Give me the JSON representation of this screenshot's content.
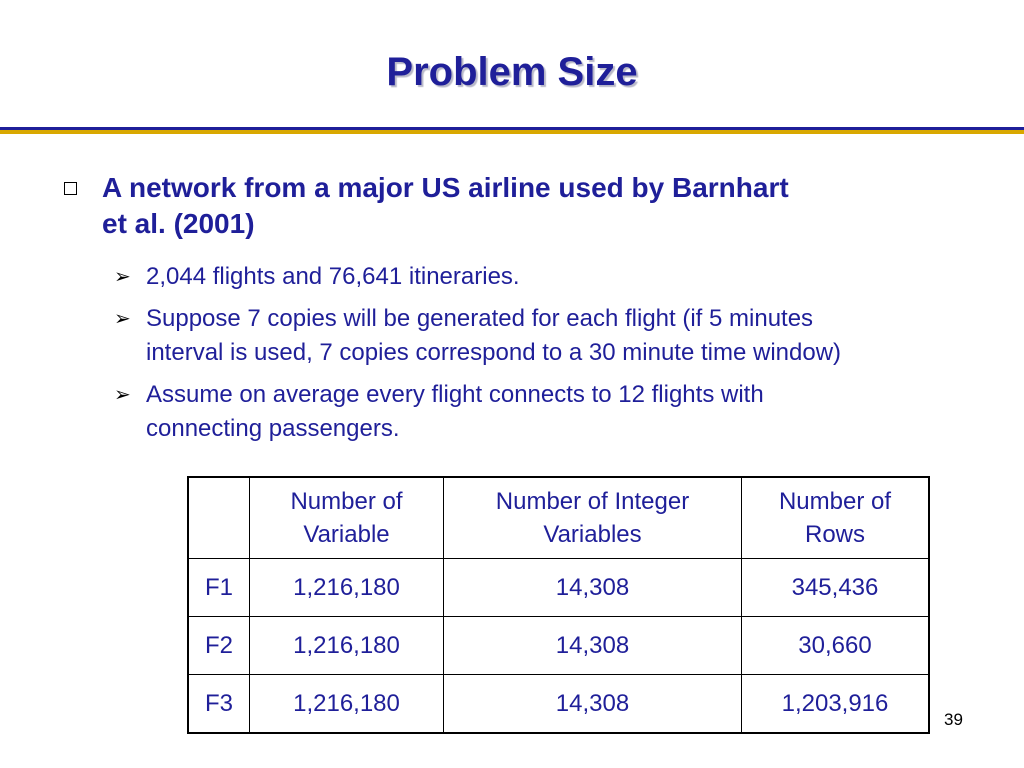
{
  "title": "Problem Size",
  "bullet": {
    "line1": "A network from a major US airline used by Barnhart",
    "line2": "et al. (2001)"
  },
  "sub_bullets": [
    {
      "line1": "2,044 flights and 76,641 itineraries.",
      "line2": ""
    },
    {
      "line1": "Suppose 7 copies will be generated for each flight (if 5 minutes",
      "line2": "interval is used, 7 copies correspond to a 30 minute time window)"
    },
    {
      "line1": "Assume on average every flight connects to 12 flights with",
      "line2": "connecting passengers."
    }
  ],
  "table": {
    "headers": [
      "",
      "Number of Variable",
      "Number of Integer Variables",
      "Number of Rows"
    ],
    "headers_lines": [
      [
        "",
        ""
      ],
      [
        "Number of",
        "Variable"
      ],
      [
        "Number of Integer",
        "Variables"
      ],
      [
        "Number of",
        "Rows"
      ]
    ],
    "rows": [
      [
        "F1",
        "1,216,180",
        "14,308",
        "345,436"
      ],
      [
        "F2",
        "1,216,180",
        "14,308",
        "30,660"
      ],
      [
        "F3",
        "1,216,180",
        "14,308",
        "1,203,916"
      ]
    ]
  },
  "page_number": "39",
  "colors": {
    "text_blue": "#1f1f99",
    "rule_gold": "#d9a800"
  }
}
